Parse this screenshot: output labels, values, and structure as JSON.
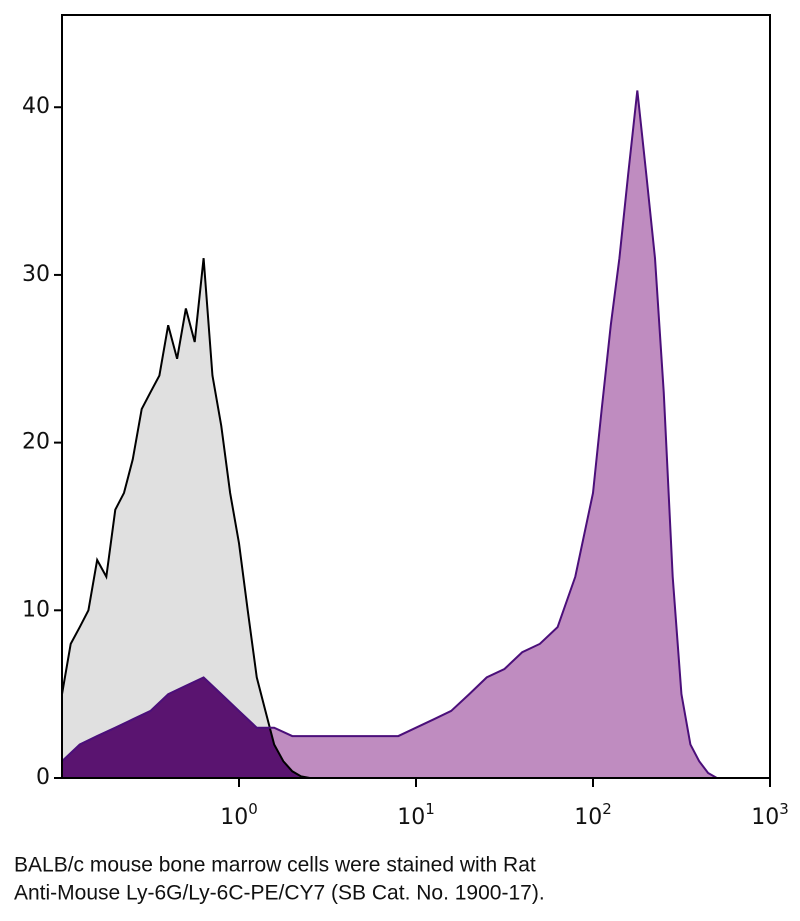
{
  "chart_data": {
    "type": "histogram-overlay",
    "xscale": "log",
    "xlim": [
      0.1,
      1000
    ],
    "ylim": [
      0,
      45.5
    ],
    "yticks": [
      0,
      10,
      20,
      30,
      40
    ],
    "xticks": [
      {
        "value": 1,
        "label": "10",
        "sup": "0"
      },
      {
        "value": 10,
        "label": "10",
        "sup": "1"
      },
      {
        "value": 100,
        "label": "10",
        "sup": "2"
      },
      {
        "value": 1000,
        "label": "10",
        "sup": "3"
      }
    ],
    "overlap_color": "#5a1470",
    "series": [
      {
        "color": "#000000",
        "fill": "#e0e0e0",
        "x": [
          0.1,
          0.112,
          0.126,
          0.141,
          0.158,
          0.178,
          0.2,
          0.224,
          0.251,
          0.282,
          0.316,
          0.355,
          0.398,
          0.447,
          0.501,
          0.562,
          0.631,
          0.708,
          0.794,
          0.891,
          1,
          1.12,
          1.26,
          1.41,
          1.58,
          1.78,
          2,
          2.24,
          2.51
        ],
        "values": [
          5,
          8,
          9,
          10,
          13,
          12,
          16,
          17,
          19,
          22,
          23,
          24,
          27,
          25,
          28,
          26,
          31,
          24,
          21,
          17,
          14,
          10,
          6,
          4,
          2,
          1,
          0.4,
          0.1,
          0
        ]
      },
      {
        "color": "#4b0f7a",
        "fill": "#bf8cc0",
        "x": [
          0.1,
          0.126,
          0.158,
          0.2,
          0.251,
          0.316,
          0.398,
          0.501,
          0.631,
          0.794,
          1,
          1.26,
          1.58,
          2,
          2.51,
          3.16,
          3.98,
          5.01,
          6.31,
          7.94,
          10,
          12.6,
          15.8,
          20,
          25.1,
          31.6,
          39.8,
          50.1,
          63.1,
          79.4,
          100,
          112,
          126,
          141,
          158,
          178,
          200,
          224,
          251,
          282,
          316,
          355,
          398,
          447,
          501
        ],
        "values": [
          1,
          2,
          2.5,
          3,
          3.5,
          4,
          5,
          5.5,
          6,
          5,
          4,
          3,
          3,
          2.5,
          2.5,
          2.5,
          2.5,
          2.5,
          2.5,
          2.5,
          3,
          3.5,
          4,
          5,
          6,
          6.5,
          7.5,
          8,
          9,
          12,
          17,
          22,
          27,
          31,
          36,
          41,
          36,
          31,
          23,
          12,
          5,
          2,
          1,
          0.3,
          0
        ]
      }
    ],
    "caption_lines": [
      "BALB/c mouse bone marrow cells were stained with Rat",
      "Anti-Mouse Ly-6G/Ly-6C-PE/CY7 (SB Cat. No. 1900-17)."
    ]
  }
}
